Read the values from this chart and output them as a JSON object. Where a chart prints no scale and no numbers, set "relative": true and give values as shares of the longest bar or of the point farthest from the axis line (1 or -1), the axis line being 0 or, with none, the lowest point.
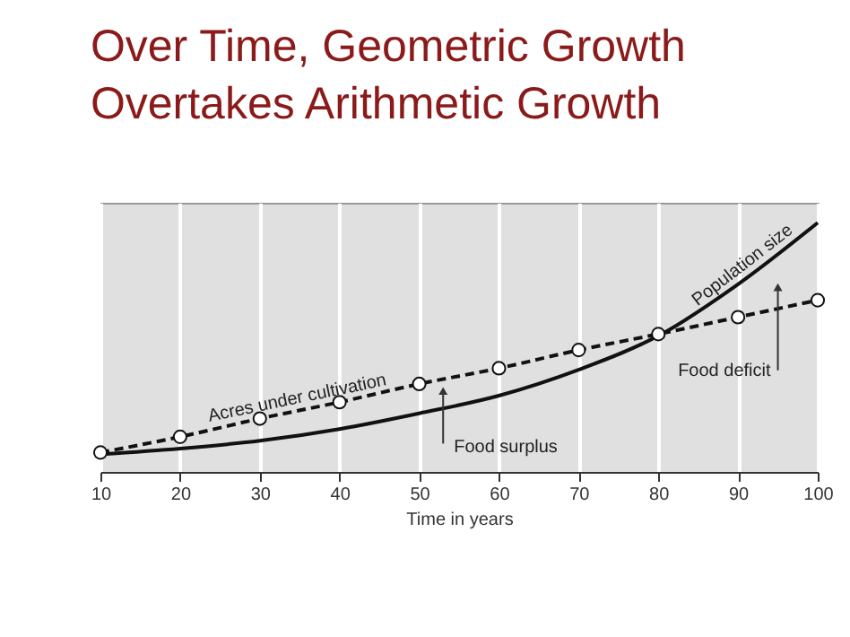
{
  "chart_data": {
    "type": "line",
    "title": "Over Time, Geometric Growth\nOvertakes Arithmetic Growth",
    "xlabel": "Time in years",
    "relative": true,
    "xlim": [
      10,
      100
    ],
    "xticks": [
      10,
      20,
      30,
      40,
      50,
      60,
      70,
      80,
      90,
      100
    ],
    "grid": "x",
    "x": [
      10,
      20,
      30,
      40,
      50,
      60,
      70,
      80,
      90,
      100
    ],
    "series": [
      {
        "name": "Acres under cultivation",
        "color": "#111111",
        "marker": "circle",
        "line_style": "dashed",
        "values": [
          0.078,
          0.141,
          0.214,
          0.28,
          0.353,
          0.416,
          0.489,
          0.553,
          0.621,
          0.689
        ]
      },
      {
        "name": "Population size",
        "color": "#111111",
        "marker": "none",
        "line_style": "solid",
        "values": [
          0.071,
          0.094,
          0.125,
          0.172,
          0.235,
          0.306,
          0.41,
          0.546,
          0.753,
          1
        ]
      }
    ],
    "annotations": [
      {
        "text": "Food surplus",
        "x": 53,
        "y": 0.325
      },
      {
        "text": "Food deficit",
        "x": 95,
        "y": 0.741
      }
    ]
  }
}
